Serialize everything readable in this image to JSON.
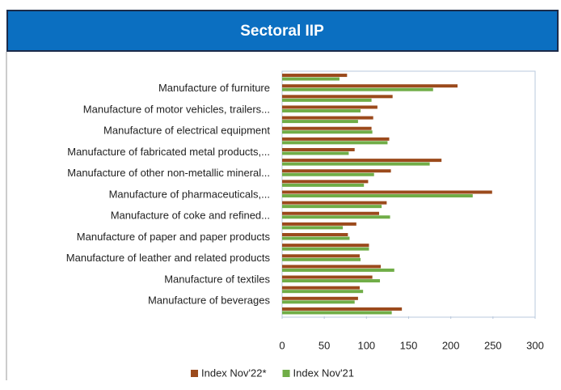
{
  "chart_data": {
    "type": "hbar",
    "title": "Sectoral IIP",
    "categories": [
      null,
      "Manufacture of furniture",
      null,
      "Manufacture of motor vehicles, trailers...",
      null,
      "Manufacture of electrical equipment",
      null,
      "Manufacture of fabricated metal products,...",
      null,
      "Manufacture of other non-metallic mineral...",
      null,
      "Manufacture of pharmaceuticals,...",
      null,
      "Manufacture of coke and refined...",
      null,
      "Manufacture of paper and paper products",
      null,
      "Manufacture of leather and related products",
      null,
      "Manufacture of textiles",
      null,
      "Manufacture of beverages",
      null
    ],
    "series": [
      {
        "name": "Index Nov'22*",
        "color": "#9b4a1c",
        "values": [
          77,
          208,
          131,
          113,
          108,
          106,
          127,
          86,
          189,
          129,
          102,
          249,
          124,
          115,
          88,
          78,
          103,
          92,
          117,
          107,
          92,
          90,
          142
        ]
      },
      {
        "name": "Index Nov'21",
        "color": "#70ad47",
        "values": [
          68,
          179,
          106,
          93,
          90,
          107,
          125,
          79,
          175,
          109,
          97,
          226,
          118,
          128,
          72,
          80,
          103,
          93,
          133,
          116,
          96,
          86,
          130
        ]
      }
    ],
    "xlim": [
      0,
      300
    ],
    "xticks": [
      0,
      50,
      100,
      150,
      200,
      250,
      300
    ],
    "legend": "bottom"
  }
}
